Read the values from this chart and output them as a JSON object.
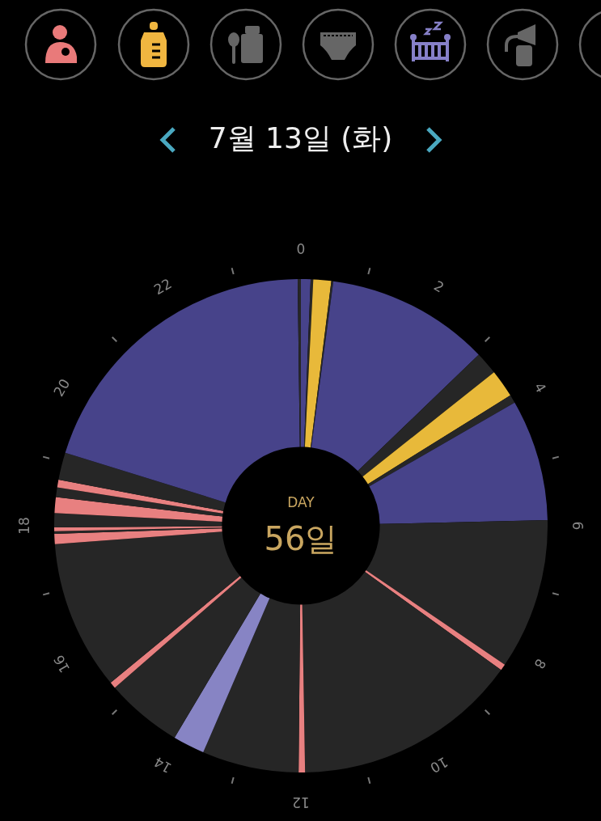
{
  "chart_data": {
    "type": "donut",
    "title": "7월 13일 (화)",
    "annotations": [
      "DAY",
      "56일",
      "0",
      "2",
      "4",
      "6",
      "8",
      "10",
      "12",
      "14",
      "16",
      "18",
      "20",
      "22"
    ],
    "categories": [
      null,
      null,
      null,
      null,
      null,
      null,
      null,
      null,
      null,
      null,
      null,
      null,
      null,
      null,
      null,
      null,
      null,
      null,
      null,
      null,
      null,
      null,
      null,
      null,
      null,
      null,
      null,
      null
    ],
    "values": [
      0.63,
      0.17,
      1.17,
      0.13,
      10.71,
      1.5,
      1.83,
      0.54,
      7.96,
      9.88,
      0.42,
      14.79,
      0.42,
      6.33,
      2.08,
      5.04,
      0.42,
      9.79,
      0.67,
      0.17,
      0.25,
      0.92,
      1.04,
      0.63,
      0.5,
      1.79,
      20.01,
      0.21
    ],
    "colors": [
      "#47438a",
      "#262626",
      "#e8b93a",
      "#262626",
      "#47438a",
      "#262626",
      "#e8b93a",
      "#262626",
      "#47438a",
      "#262626",
      "#e88080",
      "#262626",
      "#e88080",
      "#262626",
      "#8784c4",
      "#262626",
      "#e88080",
      "#262626",
      "#e88080",
      "#262626",
      "#e88080",
      "#262626",
      "#e88080",
      "#262626",
      "#e88080",
      "#262626",
      "#47438a",
      "#262626"
    ],
    "legend": false
  }
}
